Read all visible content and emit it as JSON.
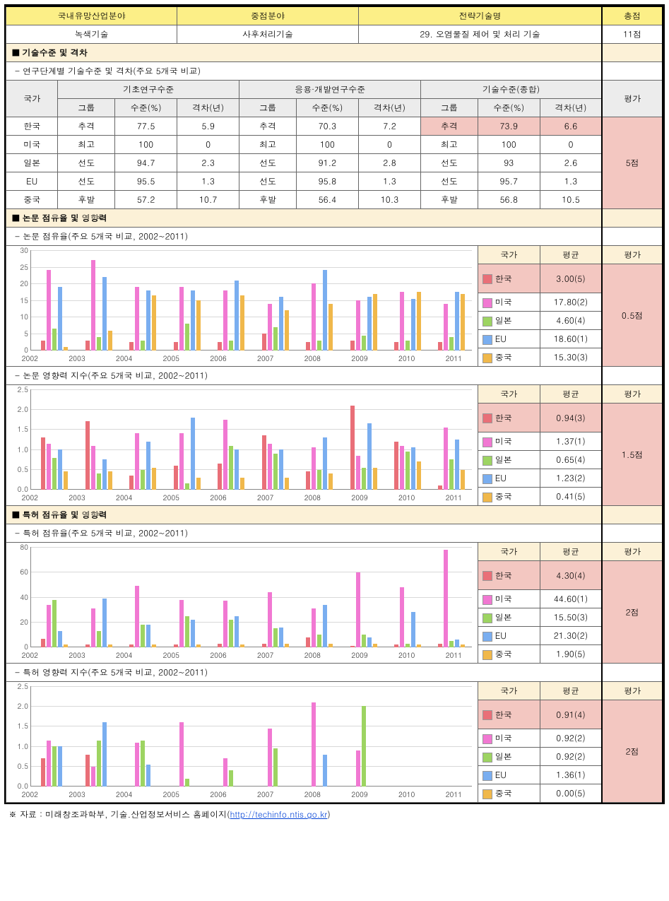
{
  "colors": {
    "korea": "#e96f78",
    "usa": "#f178d2",
    "japan": "#9dd462",
    "eu": "#7aaef0",
    "china": "#f0b84b",
    "yellow": "#fcef87",
    "cream": "#fcf1d7",
    "gray": "#ececec",
    "pink": "#f3c7c1"
  },
  "header": {
    "c1": "국내유망산업분야",
    "c2": "중점분야",
    "c3": "전략기술명",
    "c4": "총점",
    "v1": "녹색기술",
    "v2": "사후처리기술",
    "v3": "29. 오염물질 제어 및 처리 기술",
    "v4": "11점"
  },
  "section1": {
    "name": "■ 기술수준 및 격차",
    "sub": "- 연구단계별 기술수준 및 격차(주요 5개국 비교)",
    "cols": {
      "country": "국가",
      "g1": "기초연구수준",
      "g2": "응용·개발연구수준",
      "g3": "기술수준(종합)",
      "eval": "평가",
      "grp": "그룹",
      "lvl": "수준(%)",
      "gap": "격차(년)"
    },
    "rows": [
      {
        "c": "한국",
        "d": [
          "추격",
          "77.5",
          "5.9",
          "추격",
          "70.3",
          "7.2",
          "추격",
          "73.9",
          "6.6"
        ],
        "hl": [
          6,
          7,
          8
        ],
        "score": "5점"
      },
      {
        "c": "미국",
        "d": [
          "최고",
          "100",
          "0",
          "최고",
          "100",
          "0",
          "최고",
          "100",
          "0"
        ]
      },
      {
        "c": "일본",
        "d": [
          "선도",
          "94.7",
          "2.3",
          "선도",
          "91.2",
          "2.8",
          "선도",
          "93",
          "2.6"
        ]
      },
      {
        "c": "EU",
        "d": [
          "선도",
          "95.5",
          "1.3",
          "선도",
          "95.8",
          "1.3",
          "선도",
          "95.7",
          "1.3"
        ]
      },
      {
        "c": "중국",
        "d": [
          "후발",
          "57.2",
          "10.7",
          "후발",
          "56.4",
          "10.3",
          "후발",
          "56.8",
          "10.5"
        ]
      }
    ]
  },
  "section2": {
    "name": "■ 논문 점유율 및 영향력",
    "sub1": "- 논문 점유율(주요 5개국 비교, 2002~2011)",
    "sub2": "- 논문 영향력 지수(주요 5개국 비교, 2002~2011)"
  },
  "section3": {
    "name": "■ 특허 점유율 및 영향력",
    "sub1": "- 특허 점유율(주요 5개국 비교, 2002~2011)",
    "sub2": "- 특허 영향력 지수(주요 5개국 비교, 2002~2011)"
  },
  "legend_header": {
    "c": "국가",
    "a": "평균",
    "e": "평가"
  },
  "chart_share_paper": {
    "ymax": 30,
    "ystep": 5,
    "years": [
      "2002",
      "2003",
      "2004",
      "2005",
      "2006",
      "2007",
      "2008",
      "2009",
      "2010",
      "2011"
    ],
    "series": [
      {
        "k": "korea",
        "v": [
          3,
          3,
          2.5,
          2.5,
          2.5,
          5,
          2.5,
          3,
          2.5,
          2.5
        ]
      },
      {
        "k": "usa",
        "v": [
          24,
          27,
          19,
          19,
          18,
          14,
          20,
          15,
          17.5,
          14
        ]
      },
      {
        "k": "japan",
        "v": [
          6.5,
          4,
          3,
          8,
          3,
          7,
          3,
          4.5,
          3,
          4
        ]
      },
      {
        "k": "eu",
        "v": [
          19,
          22,
          18,
          18,
          21,
          16,
          24,
          16,
          15.5,
          17.5
        ]
      },
      {
        "k": "china",
        "v": [
          1,
          6,
          16.5,
          15,
          16.5,
          12,
          14,
          17,
          17.5,
          17
        ]
      }
    ],
    "legend": [
      {
        "k": "korea",
        "c": "한국",
        "a": "3.00(5)",
        "score": "0.5점"
      },
      {
        "k": "usa",
        "c": "미국",
        "a": "17.80(2)"
      },
      {
        "k": "japan",
        "c": "일본",
        "a": "4.60(4)"
      },
      {
        "k": "eu",
        "c": "EU",
        "a": "18.60(1)"
      },
      {
        "k": "china",
        "c": "중국",
        "a": "15.30(3)"
      }
    ]
  },
  "chart_impact_paper": {
    "ymax": 2.5,
    "ystep": 0.5,
    "years": [
      "2002",
      "2003",
      "2004",
      "2005",
      "2006",
      "2007",
      "2008",
      "2009",
      "2010",
      "2011"
    ],
    "series": [
      {
        "k": "korea",
        "v": [
          1.3,
          1.7,
          0.35,
          0.6,
          0.65,
          1.35,
          0.45,
          2.1,
          1.2,
          0.1
        ]
      },
      {
        "k": "usa",
        "v": [
          1.15,
          1.1,
          1.4,
          1.4,
          1.75,
          1.15,
          1.05,
          0.85,
          1.1,
          1.55
        ]
      },
      {
        "k": "japan",
        "v": [
          0.8,
          0.4,
          0.5,
          0.15,
          1.1,
          0.9,
          0.5,
          0.55,
          0.95,
          0.75
        ]
      },
      {
        "k": "eu",
        "v": [
          1.0,
          0.75,
          1.2,
          1.8,
          1.0,
          1.0,
          1.3,
          1.65,
          1.05,
          1.25
        ]
      },
      {
        "k": "china",
        "v": [
          0.45,
          0.45,
          0.55,
          0.3,
          0.3,
          0.3,
          0.4,
          0.55,
          0.7,
          0.5
        ]
      }
    ],
    "legend": [
      {
        "k": "korea",
        "c": "한국",
        "a": "0.94(3)",
        "score": "1.5점"
      },
      {
        "k": "usa",
        "c": "미국",
        "a": "1.37(1)"
      },
      {
        "k": "japan",
        "c": "일본",
        "a": "0.65(4)"
      },
      {
        "k": "eu",
        "c": "EU",
        "a": "1.23(2)"
      },
      {
        "k": "china",
        "c": "중국",
        "a": "0.41(5)"
      }
    ]
  },
  "chart_share_patent": {
    "ymax": 80,
    "ystep": 20,
    "years": [
      "2002",
      "2003",
      "2004",
      "2005",
      "2006",
      "2007",
      "2008",
      "2009",
      "2010",
      "2011"
    ],
    "series": [
      {
        "k": "korea",
        "v": [
          7,
          2,
          2,
          2,
          3,
          3,
          8,
          1,
          2,
          3
        ]
      },
      {
        "k": "usa",
        "v": [
          34,
          31,
          49,
          38,
          37,
          44,
          31,
          60,
          48,
          78
        ]
      },
      {
        "k": "japan",
        "v": [
          38,
          13,
          18,
          25,
          22,
          15,
          10,
          10,
          3,
          5
        ]
      },
      {
        "k": "eu",
        "v": [
          13,
          39,
          18,
          22,
          25,
          16,
          34,
          8,
          28,
          6
        ]
      },
      {
        "k": "china",
        "v": [
          2,
          2,
          2,
          2,
          2,
          3,
          3,
          3,
          2,
          2
        ]
      }
    ],
    "legend": [
      {
        "k": "korea",
        "c": "한국",
        "a": "4.30(4)",
        "score": "2점"
      },
      {
        "k": "usa",
        "c": "미국",
        "a": "44.60(1)"
      },
      {
        "k": "japan",
        "c": "일본",
        "a": "15.50(3)"
      },
      {
        "k": "eu",
        "c": "EU",
        "a": "21.30(2)"
      },
      {
        "k": "china",
        "c": "중국",
        "a": "1.90(5)"
      }
    ]
  },
  "chart_impact_patent": {
    "ymax": 2.5,
    "ystep": 0.5,
    "years": [
      "2002",
      "2003",
      "2004",
      "2005",
      "2006",
      "2007",
      "2008",
      "2009",
      "2010",
      "2011"
    ],
    "series": [
      {
        "k": "korea",
        "v": [
          0.7,
          0.8,
          0,
          0,
          0,
          0,
          0,
          0,
          0,
          0
        ]
      },
      {
        "k": "usa",
        "v": [
          1.15,
          0.5,
          1.1,
          1.6,
          0.7,
          1.45,
          2.1,
          0.9,
          0,
          0
        ]
      },
      {
        "k": "japan",
        "v": [
          1.0,
          1.15,
          1.15,
          0.2,
          0.4,
          0.95,
          0,
          2.0,
          0,
          0
        ]
      },
      {
        "k": "eu",
        "v": [
          1.0,
          1.6,
          0.55,
          0,
          0,
          0,
          0.8,
          0,
          0,
          0
        ]
      },
      {
        "k": "china",
        "v": [
          0,
          0,
          0,
          0,
          0,
          0,
          0,
          0,
          0,
          0
        ]
      }
    ],
    "legend": [
      {
        "k": "korea",
        "c": "한국",
        "a": "0.91(4)",
        "score": "2점"
      },
      {
        "k": "usa",
        "c": "미국",
        "a": "0.92(2)"
      },
      {
        "k": "japan",
        "c": "일본",
        "a": "0.92(2)"
      },
      {
        "k": "eu",
        "c": "EU",
        "a": "1.36(1)"
      },
      {
        "k": "china",
        "c": "중국",
        "a": "0.00(5)"
      }
    ]
  },
  "footnote": {
    "prefix": "※ 자료 : 미래창조과학부, 기술.산업정보서비스 홈페이지(",
    "url": "http://techinfo.ntis.go.kr",
    "suffix": ")"
  }
}
